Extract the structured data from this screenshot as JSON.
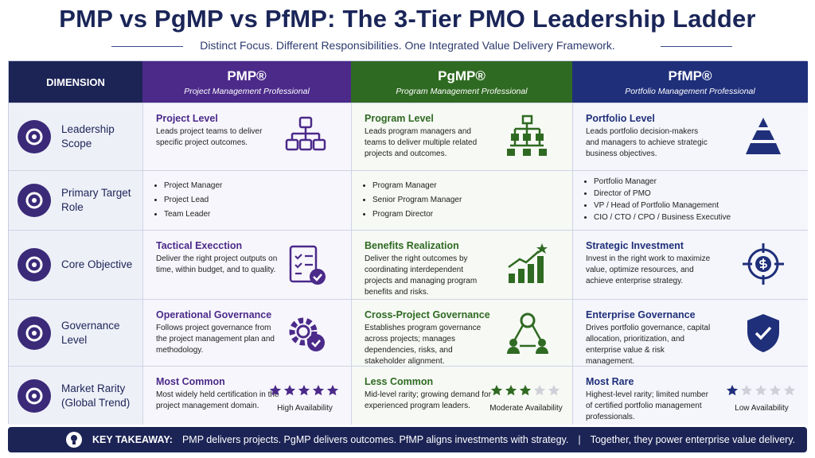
{
  "header": {
    "title": "PMP vs PgMP vs PfMP:  The 3-Tier PMO Leadership Ladder",
    "subtitle": "Distinct Focus. Different Responsibilities. One Integrated Value Delivery Framework."
  },
  "table": {
    "dimension_header": "DIMENSION",
    "columns": [
      {
        "name": "PMP®",
        "full_name": "Project Management Professional"
      },
      {
        "name": "PgMP®",
        "full_name": "Program Management Professional"
      },
      {
        "name": "PfMP®",
        "full_name": "Portfolio Management Professional"
      }
    ],
    "rows": [
      {
        "label": "Leadership Scope",
        "cells": [
          {
            "heading": "Project Level",
            "text": "Leads project teams to deliver specific project outcomes."
          },
          {
            "heading": "Program Level",
            "text": "Leads program managers and teams to deliver multiple related projects and outcomes."
          },
          {
            "heading": "Portfolio Level",
            "text": "Leads portfolio decision-makers and managers to achieve strategic business objectives."
          }
        ]
      },
      {
        "label": "Primary Target Role",
        "cells": [
          {
            "items": [
              "Project Manager",
              "Project Lead",
              "Team Leader"
            ]
          },
          {
            "items": [
              "Program Manager",
              "Senior Program Manager",
              "Program Director"
            ]
          },
          {
            "items": [
              "Portfolio Manager",
              "Director of PMO",
              "VP / Head of Portfolio Management",
              "CIO / CTO / CPO / Business Executive"
            ]
          }
        ]
      },
      {
        "label": "Core Objective",
        "cells": [
          {
            "heading": "Tactical Execction",
            "text": "Deliver the right project outputs on time, within budget, and to quality."
          },
          {
            "heading": "Benefits Realization",
            "text": "Deliver the right outcomes by coordinating interdependent projects and managing program benefits and risks."
          },
          {
            "heading": "Strategic Investment",
            "text": "Invest in the right work to maximize value, optimize resources, and achieve enterprise strategy."
          }
        ]
      },
      {
        "label": "Governance Level",
        "cells": [
          {
            "heading": "Operational Governance",
            "text": "Follows project governance from the project management plan and methodology."
          },
          {
            "heading": "Cross-Project Governance",
            "text": "Establishes program governance across projects; manages dependencies, risks, and stakeholder alignment."
          },
          {
            "heading": "Enterprise Governance",
            "text": "Drives portfolio governance, capital allocation, prioritization, and enterprise value & risk management."
          }
        ]
      },
      {
        "label": "Market Rarity (Global Trend)",
        "cells": [
          {
            "heading": "Most Common",
            "text": "Most widely held certification in the project management domain.",
            "rating": 5,
            "availability": "High Availability"
          },
          {
            "heading": "Less Common",
            "text": "Mid-level rarity; growing demand for experienced program leaders.",
            "rating": 3,
            "availability": "Moderate Availability"
          },
          {
            "heading": "Most Rare",
            "text": "Highest-level rarity; limited number of certified portfolio management professionals.",
            "rating": 1,
            "availability": "Low Availability"
          }
        ]
      }
    ],
    "rating_max": 5
  },
  "takeaway": {
    "label": "KEY TAKEAWAY:",
    "text": "PMP delivers projects. PgMP delivers outcomes. PfMP aligns investments with strategy.",
    "closing": "Together, they power enterprise value delivery."
  }
}
